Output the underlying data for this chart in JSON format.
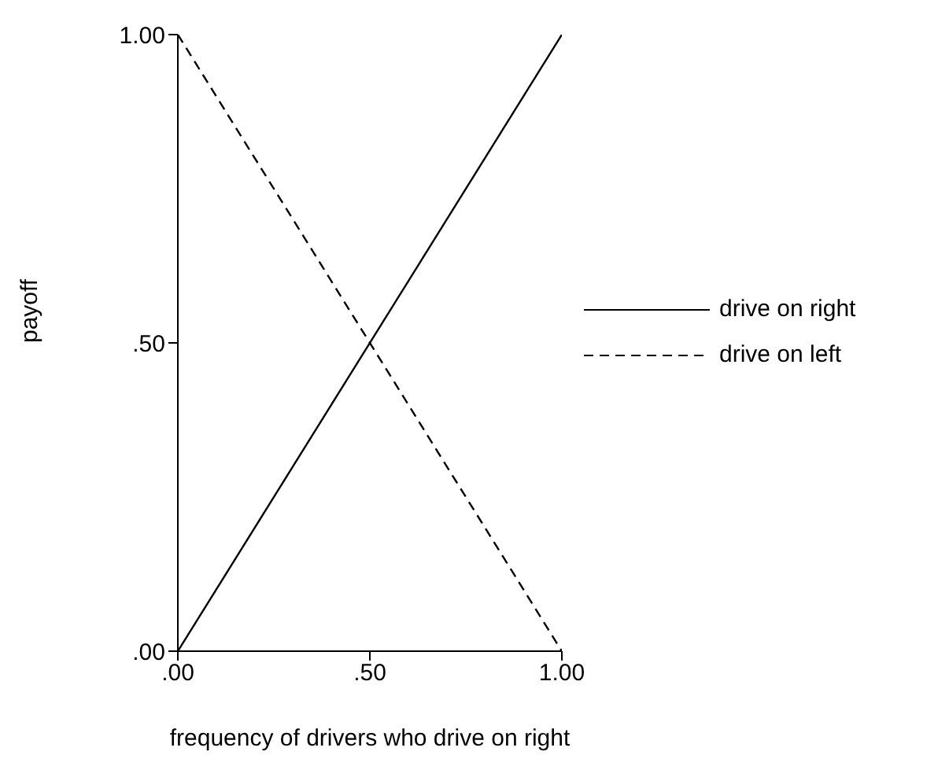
{
  "chart_data": {
    "type": "line",
    "xlabel": "frequency of drivers who drive on right",
    "ylabel": "payoff",
    "x": [
      0,
      1
    ],
    "series": [
      {
        "name": "drive on right",
        "color": "#000000",
        "line_style": "solid",
        "values": [
          0,
          1
        ]
      },
      {
        "name": "drive on left",
        "color": "#000000",
        "line_style": "dashed",
        "values": [
          1,
          0
        ]
      }
    ],
    "xlim": [
      0,
      1
    ],
    "xticks": [
      {
        "value": 0,
        "label": ".00"
      },
      {
        "value": 0.5,
        "label": ".50"
      },
      {
        "value": 1,
        "label": "1.00"
      }
    ],
    "ylim": [
      0,
      1
    ],
    "yticks": [
      {
        "value": 0,
        "label": ".00"
      },
      {
        "value": 0.5,
        "label": ".50"
      },
      {
        "value": 1,
        "label": "1.00"
      }
    ],
    "grid": false,
    "legend": "right",
    "marker": "none"
  }
}
